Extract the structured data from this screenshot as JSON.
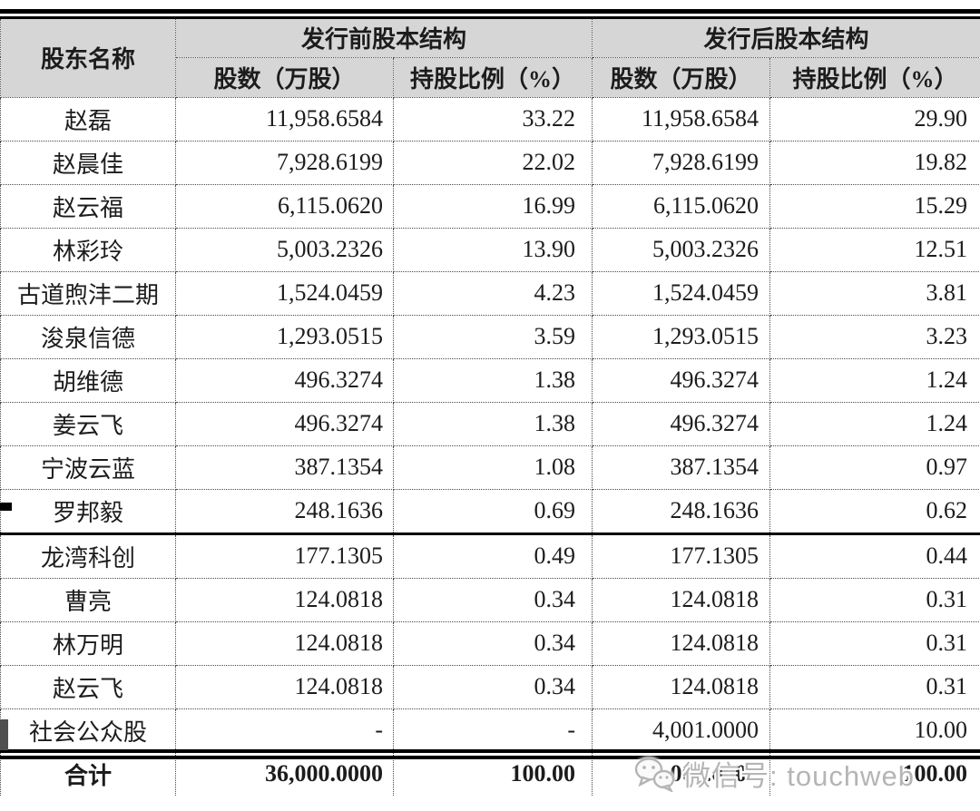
{
  "table": {
    "header": {
      "shareholder": "股东名称",
      "pre_group": "发行前股本结构",
      "post_group": "发行后股本结构",
      "shares_label": "股数（万股）",
      "ratio_label": "持股比例（%）"
    },
    "rows": [
      {
        "name": "赵磊",
        "pre_shares": "11,958.6584",
        "pre_ratio": "33.22",
        "post_shares": "11,958.6584",
        "post_ratio": "29.90"
      },
      {
        "name": "赵晨佳",
        "pre_shares": "7,928.6199",
        "pre_ratio": "22.02",
        "post_shares": "7,928.6199",
        "post_ratio": "19.82"
      },
      {
        "name": "赵云福",
        "pre_shares": "6,115.0620",
        "pre_ratio": "16.99",
        "post_shares": "6,115.0620",
        "post_ratio": "15.29"
      },
      {
        "name": "林彩玲",
        "pre_shares": "5,003.2326",
        "pre_ratio": "13.90",
        "post_shares": "5,003.2326",
        "post_ratio": "12.51"
      },
      {
        "name": "古道煦沣二期",
        "pre_shares": "1,524.0459",
        "pre_ratio": "4.23",
        "post_shares": "1,524.0459",
        "post_ratio": "3.81"
      },
      {
        "name": "浚泉信德",
        "pre_shares": "1,293.0515",
        "pre_ratio": "3.59",
        "post_shares": "1,293.0515",
        "post_ratio": "3.23"
      },
      {
        "name": "胡维德",
        "pre_shares": "496.3274",
        "pre_ratio": "1.38",
        "post_shares": "496.3274",
        "post_ratio": "1.24"
      },
      {
        "name": "姜云飞",
        "pre_shares": "496.3274",
        "pre_ratio": "1.38",
        "post_shares": "496.3274",
        "post_ratio": "1.24"
      },
      {
        "name": "宁波云蓝",
        "pre_shares": "387.1354",
        "pre_ratio": "1.08",
        "post_shares": "387.1354",
        "post_ratio": "0.97"
      },
      {
        "name": "罗邦毅",
        "pre_shares": "248.1636",
        "pre_ratio": "0.69",
        "post_shares": "248.1636",
        "post_ratio": "0.62"
      },
      {
        "name": "龙湾科创",
        "pre_shares": "177.1305",
        "pre_ratio": "0.49",
        "post_shares": "177.1305",
        "post_ratio": "0.44",
        "section_break": true
      },
      {
        "name": "曹亮",
        "pre_shares": "124.0818",
        "pre_ratio": "0.34",
        "post_shares": "124.0818",
        "post_ratio": "0.31"
      },
      {
        "name": "林万明",
        "pre_shares": "124.0818",
        "pre_ratio": "0.34",
        "post_shares": "124.0818",
        "post_ratio": "0.31"
      },
      {
        "name": "赵云飞",
        "pre_shares": "124.0818",
        "pre_ratio": "0.34",
        "post_shares": "124.0818",
        "post_ratio": "0.31"
      },
      {
        "name": "社会公众股",
        "pre_shares": "-",
        "pre_ratio": "-",
        "post_shares": "4,001.0000",
        "post_ratio": "10.00"
      },
      {
        "name": "合计",
        "pre_shares": "36,000.0000",
        "pre_ratio": "100.00",
        "post_shares": "40,001.0000",
        "post_ratio": "100.00",
        "bold": true
      }
    ]
  },
  "watermark": {
    "icon": "wechat-icon",
    "text": "微信号: touchweb"
  },
  "colors": {
    "header_bg": "#d6d6d6",
    "border": "#4a4a4a",
    "rule": "#000000",
    "watermark": "#b5b5b5"
  }
}
